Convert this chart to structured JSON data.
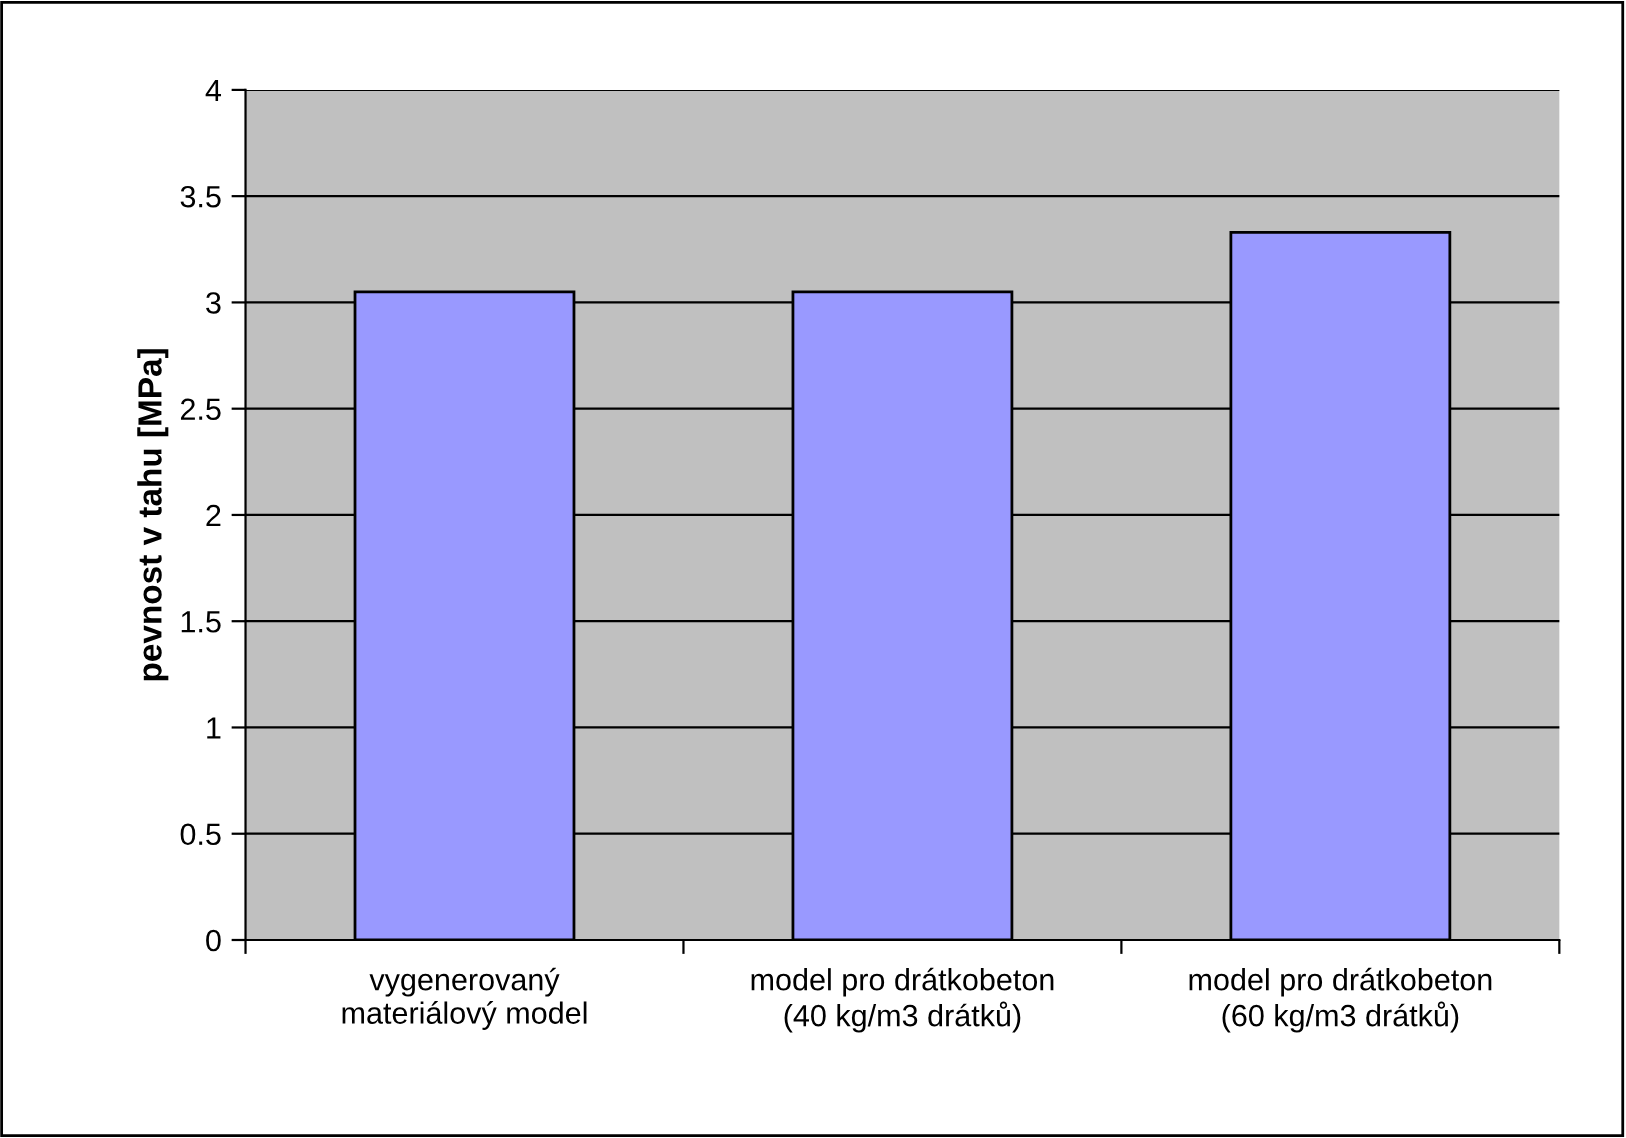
{
  "chart_data": {
    "type": "bar",
    "ylabel": "pevnost v tahu [MPa]",
    "categories": [
      "vygenerovaný\nmateriálový model",
      "model pro drátkobeton\n(40 kg/m3 drátků)",
      "model pro drátkobeton\n(60 kg/m3 drátků)"
    ],
    "values": [
      3.05,
      3.05,
      3.33
    ],
    "color": "#9999ff",
    "ylim": [
      0,
      4
    ],
    "yticks": [
      0,
      0.5,
      1,
      1.5,
      2,
      2.5,
      3,
      3.5,
      4
    ],
    "grid": "y",
    "legend": false
  }
}
